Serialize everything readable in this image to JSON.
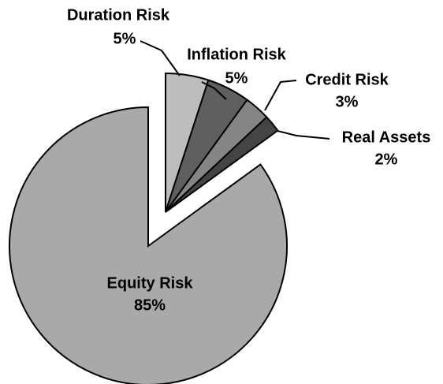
{
  "chart_data": {
    "type": "pie",
    "categories": [
      "Duration Risk",
      "Inflation Risk",
      "Credit Risk",
      "Real Assets",
      "Equity Risk"
    ],
    "values": [
      5,
      5,
      3,
      2,
      85
    ],
    "value_labels": [
      "5%",
      "5%",
      "3%",
      "2%",
      "85%"
    ],
    "colors": [
      "#bdbdbd",
      "#5f5f5f",
      "#858585",
      "#444444",
      "#a9a9a9"
    ]
  }
}
